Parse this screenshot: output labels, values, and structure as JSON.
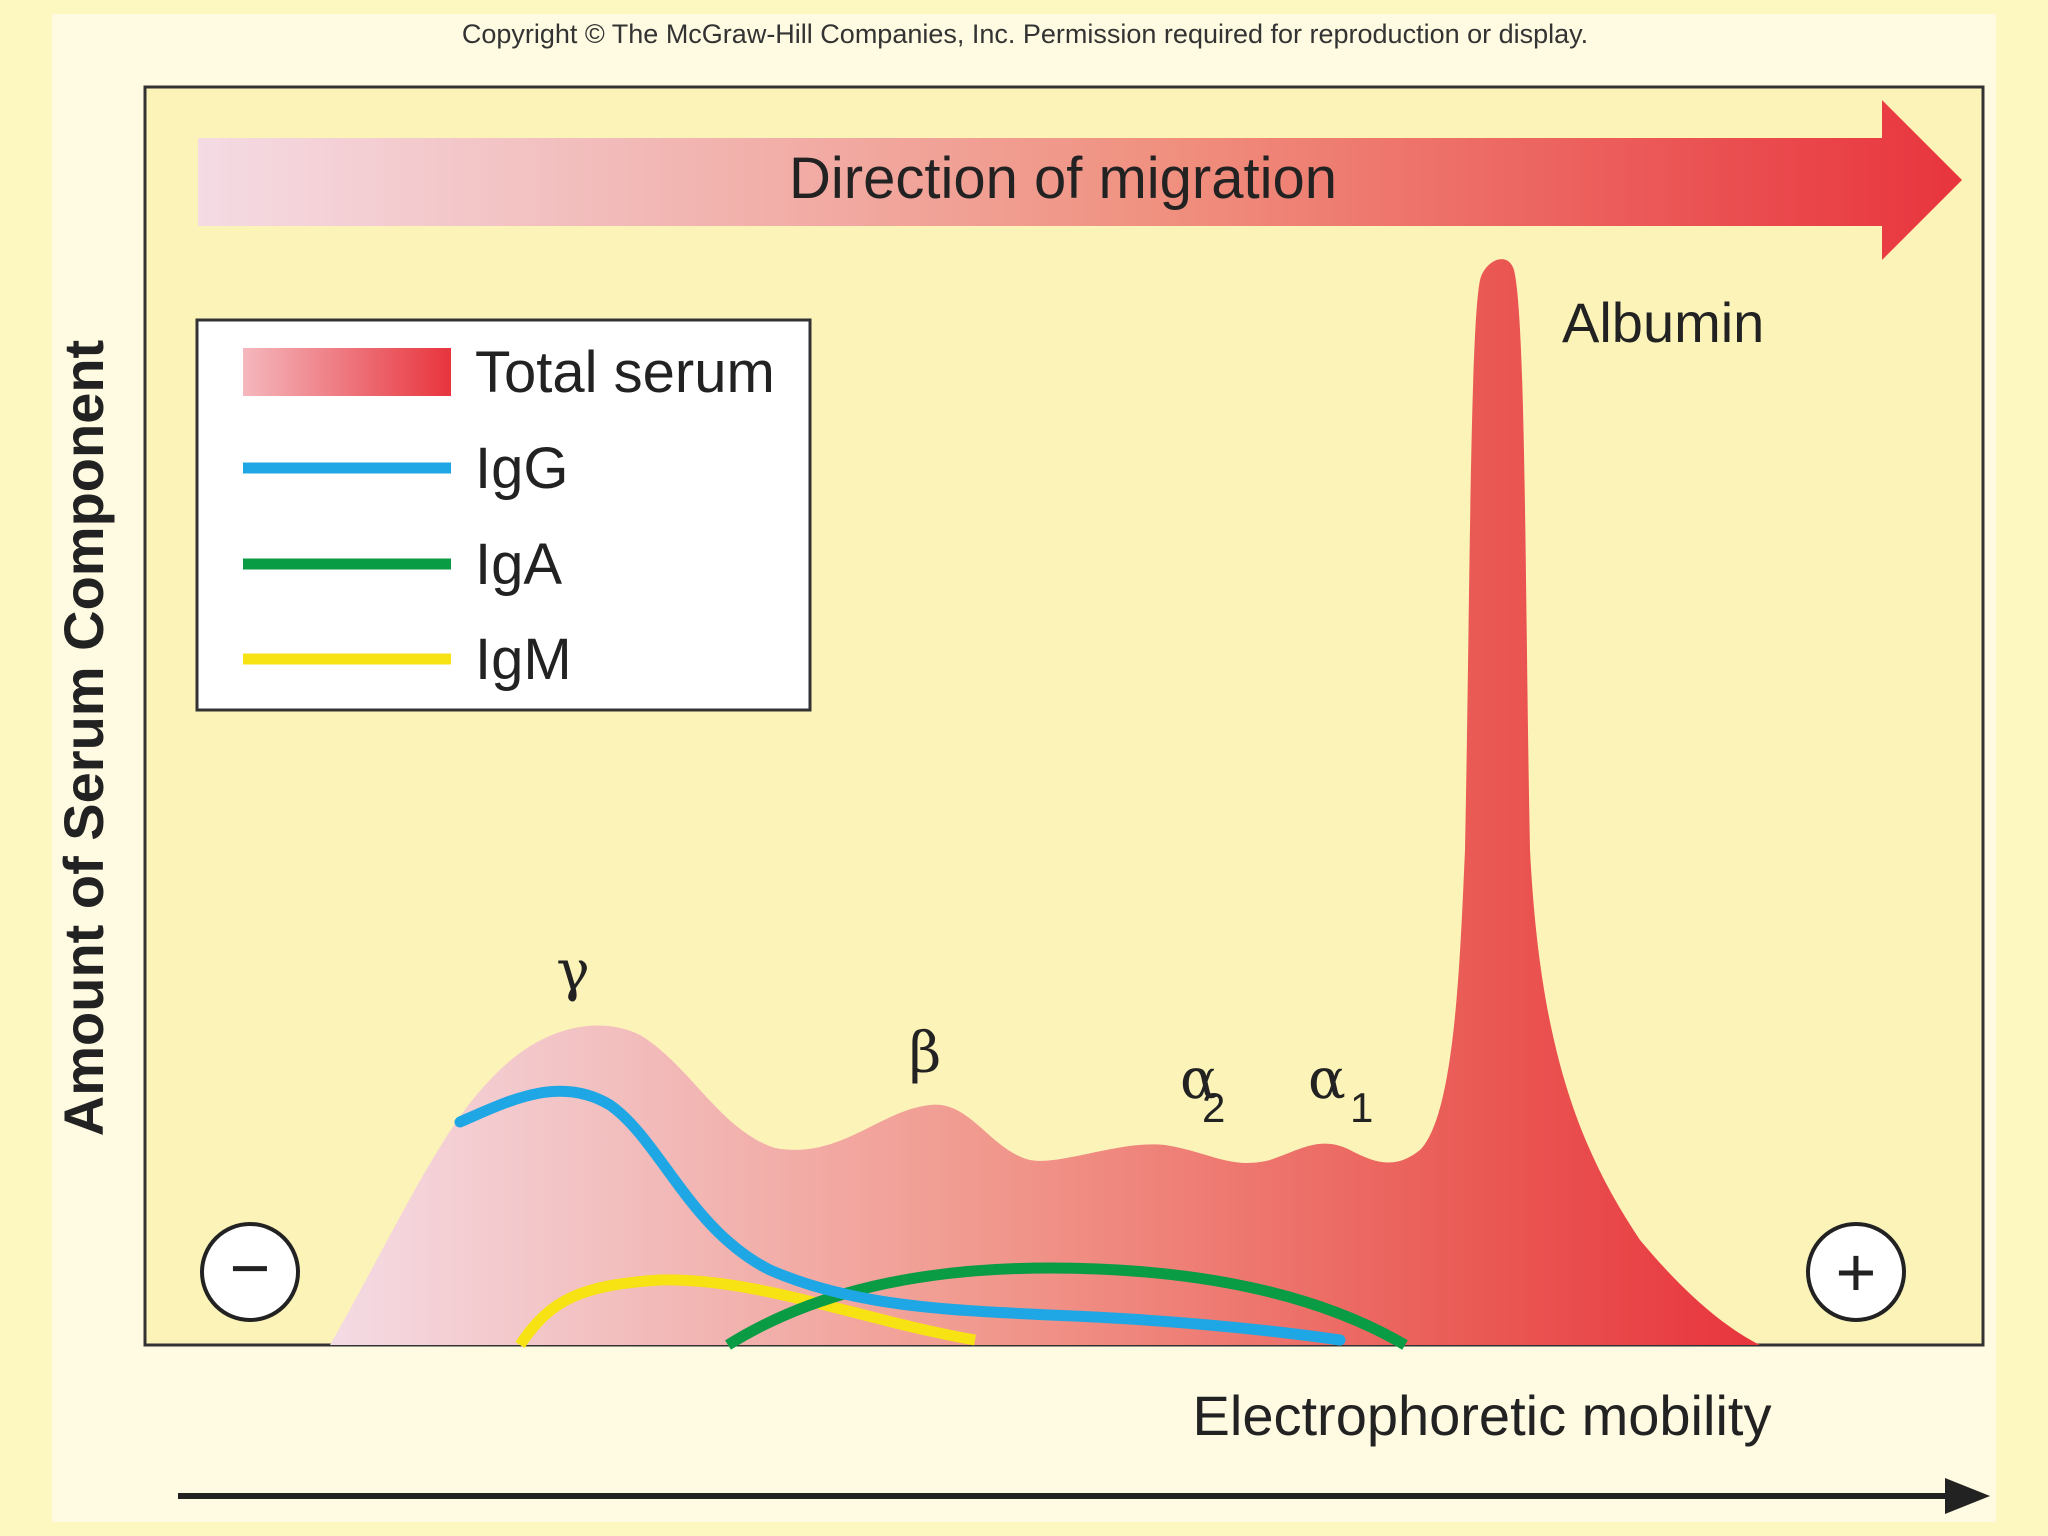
{
  "copyright": "Copyright © The McGraw-Hill Companies, Inc. Permission required for reproduction or display.",
  "migration_label": "Direction of migration",
  "y_axis_label": "Amount of Serum Component",
  "x_axis_label": "Electrophoretic mobility",
  "cathode_symbol": "−",
  "anode_symbol": "+",
  "legend": {
    "items": [
      {
        "label": "Total serum",
        "color": "#e8343d"
      },
      {
        "label": "IgG",
        "color": "#1ea7e4"
      },
      {
        "label": "IgA",
        "color": "#0a9b45"
      },
      {
        "label": "IgM",
        "color": "#f7e214"
      }
    ]
  },
  "peaks": {
    "gamma": "γ",
    "beta": "β",
    "alpha": "α",
    "alpha2_sub": "2",
    "alpha1_sub": "1",
    "albumin": "Albumin"
  },
  "colors": {
    "background": "#fdf7c0",
    "plot_fill": "#fcf3b8",
    "gradient_start": "#f4dbe4",
    "gradient_end": "#e8343d",
    "axis": "#222222"
  }
}
